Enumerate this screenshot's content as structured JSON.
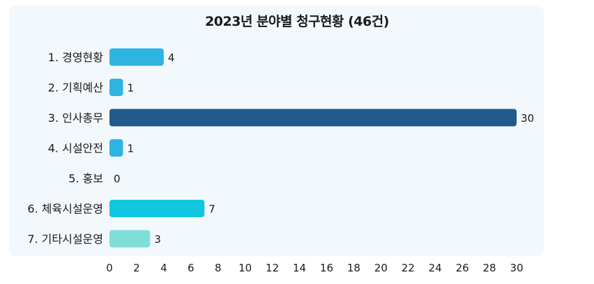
{
  "chart_data": {
    "type": "bar",
    "orientation": "horizontal",
    "title": "2023년 분야별 청구현황 (46건)",
    "categories": [
      "1. 경영현황",
      "2. 기획예산",
      "3. 인사총무",
      "4. 시설안전",
      "5. 홍보",
      "6. 체육시설운영",
      "7. 기타시설운영"
    ],
    "values": [
      4,
      1,
      30,
      1,
      0,
      7,
      3
    ],
    "colors": [
      "#2fb3e3",
      "#2fb3e3",
      "#235a8c",
      "#2fb3e3",
      "#2fb3e3",
      "#10c6e0",
      "#80ded8"
    ],
    "xlim": [
      0,
      30
    ],
    "xticks": [
      0,
      2,
      4,
      6,
      8,
      10,
      12,
      14,
      16,
      18,
      20,
      22,
      24,
      26,
      28,
      30
    ],
    "grid": false,
    "legend": "none"
  }
}
